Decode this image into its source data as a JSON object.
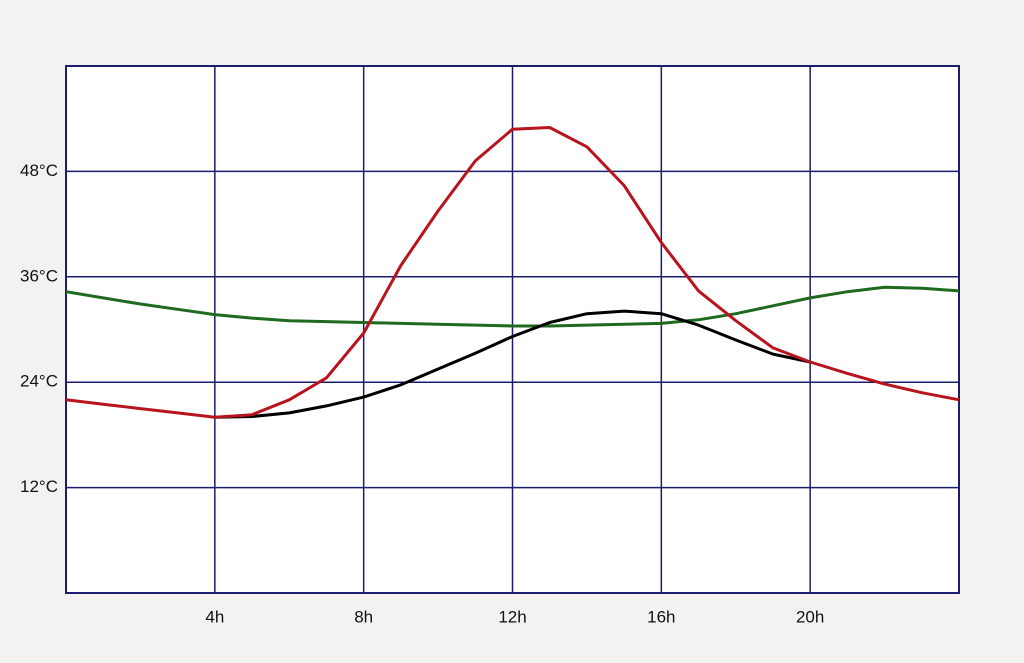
{
  "chart_data": {
    "type": "line",
    "x": [
      0,
      1,
      2,
      3,
      4,
      5,
      6,
      7,
      8,
      9,
      10,
      11,
      12,
      13,
      14,
      15,
      16,
      17,
      18,
      19,
      20,
      21,
      22,
      23,
      24
    ],
    "series": [
      {
        "color": "#1e6a1e",
        "values": [
          34.3,
          33.6,
          32.9,
          32.3,
          31.7,
          31.3,
          31.0,
          30.9,
          30.8,
          30.7,
          30.6,
          30.5,
          30.4,
          30.4,
          30.5,
          30.6,
          30.7,
          31.1,
          31.8,
          32.7,
          33.6,
          34.3,
          34.8,
          34.7,
          34.4
        ]
      },
      {
        "color": "#000000",
        "values": [
          null,
          null,
          null,
          null,
          20.0,
          20.1,
          20.5,
          21.3,
          22.3,
          23.7,
          25.5,
          27.3,
          29.2,
          30.8,
          31.8,
          32.1,
          31.8,
          30.5,
          28.8,
          27.2,
          26.3,
          null,
          null,
          null,
          null
        ]
      },
      {
        "color": "#b8141e",
        "values": [
          22.0,
          21.5,
          21.0,
          20.5,
          20.0,
          20.3,
          22.0,
          24.5,
          29.6,
          37.3,
          43.5,
          49.2,
          52.8,
          53.0,
          50.8,
          46.4,
          39.9,
          34.4,
          31.0,
          27.9,
          26.3,
          25.0,
          23.8,
          22.8,
          22.0
        ]
      }
    ],
    "xlim": [
      0,
      24
    ],
    "xticks": [
      {
        "value": 4,
        "label": "4h"
      },
      {
        "value": 8,
        "label": "8h"
      },
      {
        "value": 12,
        "label": "12h"
      },
      {
        "value": 16,
        "label": "16h"
      },
      {
        "value": 20,
        "label": "20h"
      }
    ],
    "ylim": [
      0,
      60
    ],
    "yticks": [
      {
        "value": 12,
        "label": "12°C"
      },
      {
        "value": 24,
        "label": "24°C"
      },
      {
        "value": 36,
        "label": "36°C"
      },
      {
        "value": 48,
        "label": "48°C"
      }
    ],
    "grid": true,
    "grid_color": "#1c1c6e"
  }
}
